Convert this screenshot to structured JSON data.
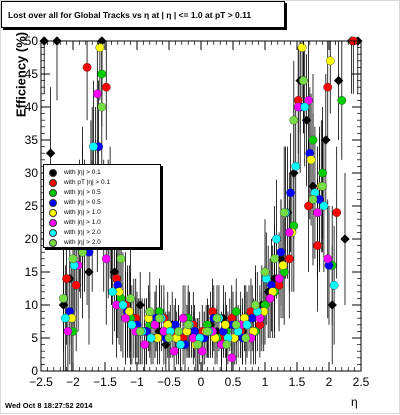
{
  "title": "Lost over all for Global Tracks vs   η at |  η | <= 1.0 at pT > 0.11",
  "ylabel": "Efficiency (%)",
  "xlabel": "η",
  "footer": "Wed Oct  8 18:27:52 2014",
  "chart_data": {
    "type": "scatter",
    "title": "Lost over all for Global Tracks vs   η at |  η | <= 1.0 at pT > 0.11",
    "xlabel": "η",
    "ylabel": "Efficiency (%)",
    "xlim": [
      -2.5,
      2.5
    ],
    "ylim": [
      0,
      50
    ],
    "x_ticks": [
      -2.5,
      -2,
      -1.5,
      -1,
      -0.5,
      0,
      0.5,
      1,
      1.5,
      2,
      2.5
    ],
    "x_tick_labels": [
      "−2.5",
      "−2",
      "−1.5",
      "−1",
      "−0.5",
      "0",
      "0.5",
      "1",
      "1.5",
      "2",
      "2.5"
    ],
    "y_ticks": [
      0,
      5,
      10,
      15,
      20,
      25,
      30,
      35,
      40,
      45,
      50
    ],
    "y_tick_labels": [
      "0",
      "5",
      "10",
      "15",
      "20",
      "25",
      "30",
      "35",
      "40",
      "45",
      "50"
    ],
    "legend_position": "middle-left",
    "legend_entries": [
      "with |η| > 0.1",
      "with pT |η| > 0.1",
      "with |η| > 0.5",
      "with |η| > 0.5",
      "with |η| > 1.0",
      "with |η| > 1.0",
      "with |η| > 2.0",
      "with |η| > 2.0"
    ],
    "series": [
      {
        "color": "#000000",
        "x": [
          -2.45,
          -2.35,
          -2.25,
          -2.15,
          -2.05,
          -1.95,
          -1.85,
          -1.75,
          -1.65,
          -1.55,
          -1.45,
          -1.35,
          -1.25,
          -1.15,
          -1.05,
          -0.95,
          -0.85,
          -0.75,
          -0.65,
          -0.55,
          -0.45,
          -0.35,
          -0.25,
          -0.15,
          -0.05,
          0.05,
          0.15,
          0.25,
          0.35,
          0.45,
          0.55,
          0.65,
          0.75,
          0.85,
          0.95,
          1.05,
          1.15,
          1.25,
          1.35,
          1.45,
          1.55,
          1.65,
          1.75,
          1.85,
          1.95,
          2.05,
          2.15,
          2.25,
          2.35,
          2.45
        ],
        "y": [
          50,
          33,
          50,
          10,
          14,
          20,
          25,
          15,
          30,
          50,
          22,
          15,
          11,
          9,
          8,
          10,
          6,
          5,
          6,
          4,
          7,
          5,
          8,
          6,
          4,
          5,
          7,
          6,
          8,
          7,
          5,
          6,
          8,
          9,
          10,
          12,
          14,
          17,
          24,
          30,
          44,
          38,
          28,
          26,
          35,
          10,
          44,
          20,
          50,
          50
        ],
        "err": [
          8,
          10,
          9,
          10,
          10,
          11,
          12,
          11,
          10,
          8,
          10,
          9,
          8,
          6,
          6,
          5,
          5,
          4,
          5,
          4,
          5,
          4,
          5,
          4,
          4,
          4,
          5,
          4,
          5,
          4,
          4,
          5,
          5,
          6,
          6,
          7,
          8,
          9,
          10,
          10,
          8,
          10,
          11,
          11,
          10,
          9,
          9,
          10,
          8,
          8
        ]
      },
      {
        "color": "#ff0000",
        "x": [
          -2.1,
          -1.95,
          -1.78,
          -1.62,
          -1.48,
          -1.32,
          -1.18,
          -1.02,
          -0.88,
          -0.72,
          -0.58,
          -0.42,
          -0.28,
          -0.12,
          0.02,
          0.18,
          0.32,
          0.48,
          0.62,
          0.78,
          0.92,
          1.08,
          1.22,
          1.38,
          1.52,
          1.68,
          1.82,
          1.98,
          2.12,
          2.38
        ],
        "y": [
          14,
          13,
          46,
          25,
          43,
          14,
          10,
          8,
          6,
          7,
          8,
          6,
          5,
          7,
          6,
          9,
          5,
          8,
          6,
          9,
          7,
          11,
          13,
          17,
          41,
          25,
          19,
          43,
          24,
          50
        ],
        "err": [
          10,
          10,
          8,
          10,
          8,
          9,
          8,
          6,
          5,
          5,
          5,
          4,
          4,
          5,
          4,
          5,
          4,
          5,
          4,
          5,
          5,
          6,
          7,
          9,
          8,
          10,
          10,
          8,
          10,
          8
        ]
      },
      {
        "color": "#00cc00",
        "x": [
          -2.0,
          -1.85,
          -1.7,
          -1.55,
          -1.4,
          -1.25,
          -1.1,
          -0.95,
          -0.8,
          -0.65,
          -0.5,
          -0.35,
          -0.2,
          -0.05,
          0.1,
          0.25,
          0.4,
          0.55,
          0.7,
          0.85,
          1.0,
          1.15,
          1.3,
          1.45,
          1.6,
          1.75,
          1.9,
          2.05,
          2.2
        ],
        "y": [
          6,
          24,
          30,
          45,
          20,
          11,
          8,
          6,
          7,
          9,
          5,
          6,
          8,
          4,
          7,
          5,
          6,
          9,
          8,
          6,
          10,
          12,
          15,
          22,
          44,
          35,
          30,
          16,
          41
        ],
        "err": [
          8,
          10,
          10,
          8,
          10,
          8,
          7,
          5,
          5,
          5,
          4,
          4,
          5,
          4,
          4,
          4,
          4,
          5,
          5,
          5,
          6,
          7,
          8,
          10,
          8,
          10,
          10,
          9,
          9
        ]
      },
      {
        "color": "#0000ff",
        "x": [
          -2.05,
          -1.9,
          -1.75,
          -1.6,
          -1.45,
          -1.3,
          -1.15,
          -1.0,
          -0.85,
          -0.7,
          -0.55,
          -0.4,
          -0.25,
          -0.1,
          0.05,
          0.2,
          0.35,
          0.5,
          0.65,
          0.8,
          0.95,
          1.1,
          1.25,
          1.4,
          1.55,
          1.7,
          1.85,
          2.0
        ],
        "y": [
          9,
          22,
          18,
          34,
          21,
          13,
          9,
          7,
          6,
          8,
          5,
          7,
          4,
          6,
          5,
          8,
          6,
          7,
          5,
          8,
          9,
          13,
          18,
          27,
          40,
          33,
          26,
          16
        ],
        "err": [
          8,
          10,
          10,
          10,
          10,
          8,
          7,
          5,
          5,
          5,
          4,
          4,
          4,
          4,
          4,
          5,
          4,
          5,
          4,
          5,
          6,
          7,
          8,
          9,
          10,
          10,
          10,
          9
        ]
      },
      {
        "color": "#ffff00",
        "x": [
          -2.02,
          -1.88,
          -1.72,
          -1.58,
          -1.42,
          -1.28,
          -1.12,
          -0.98,
          -0.82,
          -0.68,
          -0.52,
          -0.38,
          -0.22,
          -0.08,
          0.08,
          0.22,
          0.38,
          0.52,
          0.68,
          0.82,
          0.98,
          1.12,
          1.28,
          1.42,
          1.58,
          1.72,
          1.88,
          2.02
        ],
        "y": [
          8,
          21,
          28,
          49,
          24,
          12,
          9,
          6,
          8,
          5,
          7,
          5,
          6,
          4,
          6,
          5,
          7,
          5,
          8,
          6,
          9,
          12,
          16,
          21,
          49,
          32,
          28,
          47
        ],
        "err": [
          8,
          10,
          10,
          8,
          10,
          8,
          7,
          5,
          5,
          4,
          5,
          4,
          4,
          4,
          4,
          4,
          5,
          4,
          5,
          5,
          6,
          7,
          8,
          9,
          8,
          10,
          10,
          8
        ]
      },
      {
        "color": "#ff00ff",
        "x": [
          -2.08,
          -1.92,
          -1.78,
          -1.62,
          -1.48,
          -1.32,
          -1.18,
          -1.02,
          -0.88,
          -0.72,
          -0.58,
          -0.42,
          -0.28,
          -0.12,
          0.02,
          0.18,
          0.32,
          0.48,
          0.62,
          0.78,
          0.92,
          1.08,
          1.22,
          1.38,
          1.52,
          1.68,
          1.82,
          1.98
        ],
        "y": [
          6,
          16,
          20,
          42,
          17,
          10,
          8,
          6,
          4,
          7,
          6,
          3,
          8,
          5,
          3,
          6,
          4,
          2,
          7,
          5,
          8,
          11,
          14,
          21,
          40,
          41,
          24,
          17
        ],
        "err": [
          8,
          10,
          10,
          9,
          10,
          8,
          7,
          5,
          4,
          5,
          5,
          3,
          5,
          4,
          3,
          4,
          4,
          3,
          5,
          4,
          5,
          6,
          7,
          9,
          9,
          9,
          10,
          9
        ]
      },
      {
        "color": "#00ffff",
        "x": [
          -2.12,
          -1.98,
          -1.82,
          -1.68,
          -1.52,
          -1.38,
          -1.22,
          -1.08,
          -0.92,
          -0.78,
          -0.62,
          -0.48,
          -0.32,
          -0.18,
          -0.02,
          0.12,
          0.28,
          0.42,
          0.58,
          0.72,
          0.88,
          1.02,
          1.18,
          1.32,
          1.48,
          1.62,
          1.78,
          1.92,
          2.08
        ],
        "y": [
          8,
          16,
          22,
          34,
          22,
          12,
          10,
          7,
          6,
          5,
          8,
          6,
          4,
          7,
          5,
          6,
          8,
          5,
          6,
          7,
          9,
          14,
          20,
          24,
          31,
          40,
          27,
          25,
          13
        ],
        "err": [
          8,
          10,
          10,
          10,
          10,
          8,
          8,
          6,
          5,
          4,
          5,
          4,
          4,
          5,
          4,
          4,
          5,
          4,
          4,
          5,
          6,
          7,
          9,
          10,
          10,
          9,
          10,
          10,
          9
        ]
      },
      {
        "color": "#77dd44",
        "x": [
          -2.15,
          -2.0,
          -1.85,
          -1.7,
          -1.55,
          -1.4,
          -1.25,
          -1.1,
          -0.95,
          -0.8,
          -0.65,
          -0.5,
          -0.35,
          -0.2,
          -0.05,
          0.1,
          0.25,
          0.4,
          0.55,
          0.7,
          0.85,
          1.0,
          1.15,
          1.3,
          1.45,
          1.6,
          1.75,
          1.9
        ],
        "y": [
          11,
          17,
          18,
          22,
          40,
          20,
          17,
          11,
          6,
          9,
          8,
          5,
          6,
          7,
          4,
          6,
          8,
          4,
          7,
          5,
          10,
          15,
          17,
          24,
          38,
          44,
          26,
          28
        ],
        "err": [
          8,
          10,
          10,
          10,
          9,
          10,
          9,
          8,
          5,
          6,
          5,
          4,
          4,
          5,
          4,
          4,
          5,
          4,
          5,
          4,
          6,
          8,
          8,
          10,
          9,
          8,
          10,
          10
        ]
      }
    ]
  }
}
